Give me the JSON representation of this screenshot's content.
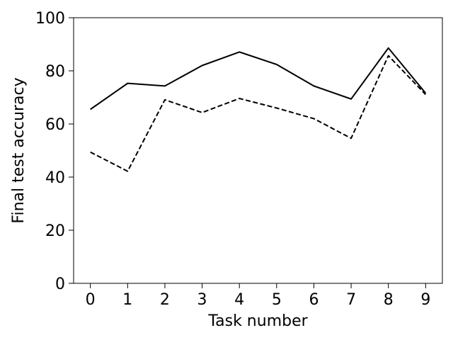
{
  "chart_data": {
    "type": "line",
    "title": "",
    "xlabel": "Task number",
    "ylabel": "Final test accuracy",
    "x": [
      0,
      1,
      2,
      3,
      4,
      5,
      6,
      7,
      8,
      9
    ],
    "xlim": [
      -0.45,
      9.45
    ],
    "ylim": [
      0,
      100
    ],
    "xticks": [
      "0",
      "1",
      "2",
      "3",
      "4",
      "5",
      "6",
      "7",
      "8",
      "9"
    ],
    "yticks": [
      "0",
      "20",
      "40",
      "60",
      "80",
      "100"
    ],
    "grid": false,
    "series": [
      {
        "style": "solid",
        "color": "#000000",
        "values": [
          65.5,
          75.3,
          74.3,
          82.0,
          87.1,
          82.4,
          74.3,
          69.4,
          88.6,
          71.6
        ]
      },
      {
        "style": "dashed",
        "color": "#000000",
        "values": [
          49.4,
          42.2,
          69.1,
          64.3,
          69.6,
          66.0,
          62.0,
          54.6,
          85.7,
          71.1
        ]
      }
    ]
  }
}
